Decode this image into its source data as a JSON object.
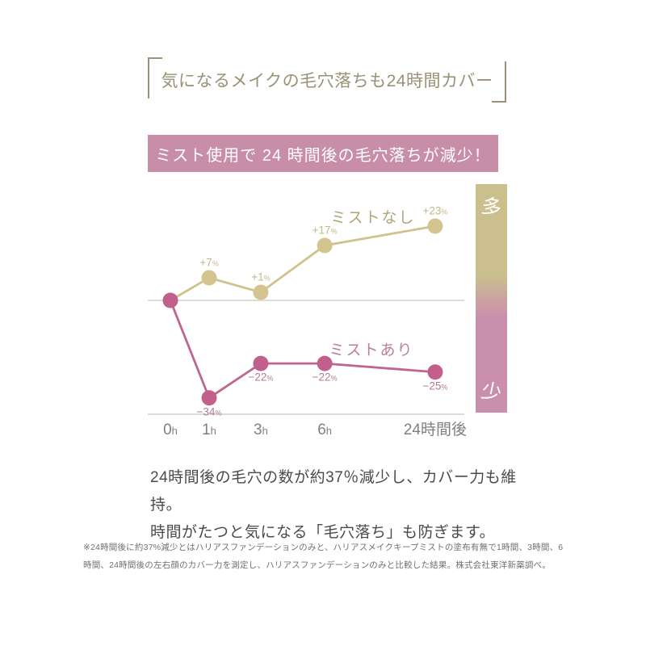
{
  "header": {
    "title": "気になるメイクの毛穴落ちも24時間カバー",
    "banner": "ミスト使用で 24 時間後の毛穴落ちが減少！"
  },
  "chart_data": {
    "type": "line",
    "title": "ミスト使用で 24 時間後の毛穴落ちが減少！",
    "categories": [
      "0h",
      "1h",
      "3h",
      "6h",
      "24時間後"
    ],
    "x_hours": [
      0,
      1,
      3,
      6,
      24
    ],
    "unit": "%",
    "baseline_value": 0,
    "ylim": [
      -40,
      30
    ],
    "grid": false,
    "legend_position": "inline-near-series",
    "series": [
      {
        "name": "ミストなし",
        "values": [
          0,
          7,
          1,
          17,
          23
        ],
        "point_labels": [
          "",
          "+7%",
          "+1%",
          "+17%",
          "+23%"
        ],
        "line_color": "#d1c28c",
        "dot_color": "#d4c48f",
        "label_color": "#c3b78e",
        "name_color": "#b2a677"
      },
      {
        "name": "ミストあり",
        "values": [
          0,
          -34,
          -22,
          -22,
          -25
        ],
        "point_labels": [
          "",
          "−34%",
          "−22%",
          "−22%",
          "−25%"
        ],
        "line_color": "#bf6590",
        "dot_color": "#c25f8c",
        "label_color": "#ae7b97",
        "name_color": "#bd7da0"
      }
    ],
    "scale_bar": {
      "high_label": "多",
      "low_label": "少",
      "top_color": "#cbbf8e",
      "bottom_color": "#cb8fae"
    }
  },
  "body": {
    "line1": "24時間後の毛穴の数が約37％減少し、カバー力も維持。",
    "line2": "時間がたつと気になる「毛穴落ち」も防ぎます。"
  },
  "footnote": "※24時間後に約37%減少とはハリアスファンデーションのみと、ハリアスメイクキープミストの塗布有無で1時間、3時間、6時間、24時間後の左右顔のカバー力を測定し、ハリアスファンデーションのみと比較した結果。株式会社東洋新薬調べ。",
  "colors": {
    "background": "#ffffff",
    "title_text": "#9a9176",
    "bracket": "#9c9278",
    "banner_bg": "#c88ea8",
    "banner_text": "#ffffff",
    "axis_line": "#dcdcdc",
    "x_label": "#7f7f7f",
    "body_text": "#4a4a4a",
    "footnote_text": "#707070",
    "scale_label_text": "#ffffff"
  }
}
